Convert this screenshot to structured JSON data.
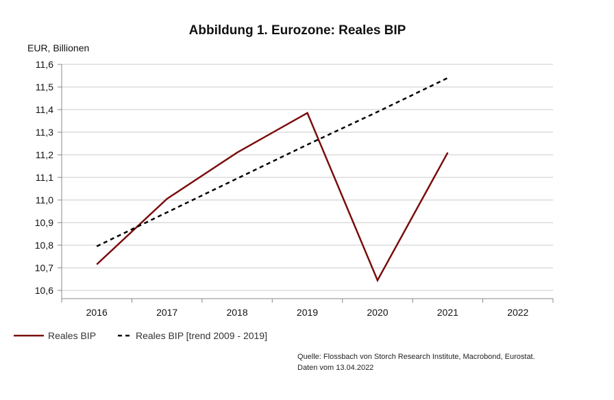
{
  "chart_data": {
    "type": "line",
    "title": "Abbildung 1. Eurozone: Reales BIP",
    "ylabel": "EUR, Billionen",
    "xlabel": "",
    "categories": [
      "2016",
      "2017",
      "2018",
      "2019",
      "2020",
      "2021",
      "2022"
    ],
    "ylim": [
      10.6,
      11.6
    ],
    "yticks": [
      "10,6",
      "10,7",
      "10,8",
      "10,9",
      "11,0",
      "11,1",
      "11,2",
      "11,3",
      "11,4",
      "11,5",
      "11,6"
    ],
    "grid": true,
    "legend_position": "bottom-left",
    "series": [
      {
        "name": "Reales BIP",
        "style": "solid",
        "color": "#7a0c0c",
        "x": [
          "2016",
          "2017",
          "2018",
          "2019",
          "2020",
          "2021"
        ],
        "values": [
          10.715,
          11.005,
          11.21,
          11.385,
          10.645,
          11.21
        ]
      },
      {
        "name": "Reales BIP [trend 2009 - 2019]",
        "style": "dashed",
        "color": "#000000",
        "x": [
          "2016",
          "2017",
          "2018",
          "2019",
          "2020",
          "2021"
        ],
        "values": [
          10.795,
          10.945,
          11.095,
          11.245,
          11.39,
          11.54
        ]
      }
    ]
  },
  "source": {
    "line1": "Quelle: Flossbach von Storch Research Institute, Macrobond, Eurostat.",
    "line2": "Daten vom 13.04.2022"
  }
}
